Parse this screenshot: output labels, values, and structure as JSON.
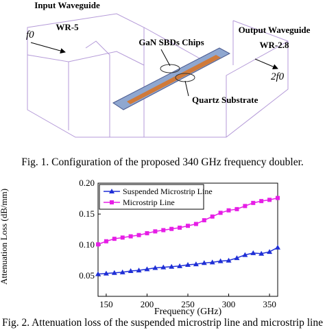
{
  "figure1": {
    "input_label": "Input Waveguide",
    "input_name": "WR-5",
    "input_freq": "f0",
    "chips_label": "GaN SBDs Chips",
    "output_label": "Output Waveguide",
    "output_name": "WR-2.8",
    "output_freq": "2f0",
    "substrate_label": "Quartz Substrate",
    "caption": "Fig. 1. Configuration of the proposed 340 GHz frequency doubler."
  },
  "chart_data": {
    "type": "line",
    "x_label": "Frequency (GHz)",
    "y_label": "Attenuation Loss (dB/mm)",
    "x": [
      140,
      150,
      160,
      170,
      180,
      190,
      200,
      210,
      220,
      230,
      240,
      250,
      260,
      270,
      280,
      290,
      300,
      310,
      320,
      330,
      340,
      350,
      360
    ],
    "series": [
      {
        "name": "Suspended Microstrip Line",
        "color": "#1f2fd6",
        "marker": "triangle",
        "values": [
          0.053,
          0.054,
          0.055,
          0.056,
          0.058,
          0.059,
          0.061,
          0.063,
          0.064,
          0.065,
          0.066,
          0.068,
          0.069,
          0.071,
          0.072,
          0.074,
          0.075,
          0.079,
          0.084,
          0.087,
          0.086,
          0.089,
          0.096
        ]
      },
      {
        "name": "Microstrip Line",
        "color": "#e61ee6",
        "marker": "square",
        "values": [
          0.101,
          0.106,
          0.11,
          0.112,
          0.114,
          0.116,
          0.119,
          0.122,
          0.124,
          0.126,
          0.128,
          0.131,
          0.134,
          0.14,
          0.146,
          0.152,
          0.156,
          0.158,
          0.163,
          0.168,
          0.171,
          0.173,
          0.176
        ]
      }
    ],
    "xlim": [
      140,
      360
    ],
    "ylim": [
      0.017,
      0.2
    ],
    "xticks": [
      150,
      200,
      250,
      300,
      350
    ],
    "yticks": [
      0.05,
      {
        "value": 0.1,
        "label": "0.10"
      },
      0.15,
      {
        "value": 0.2,
        "label": "0.20"
      }
    ],
    "legend": "upper left"
  },
  "figure2_caption": "Fig. 2. Attenuation loss of the suspended microstrip line and microstrip line"
}
